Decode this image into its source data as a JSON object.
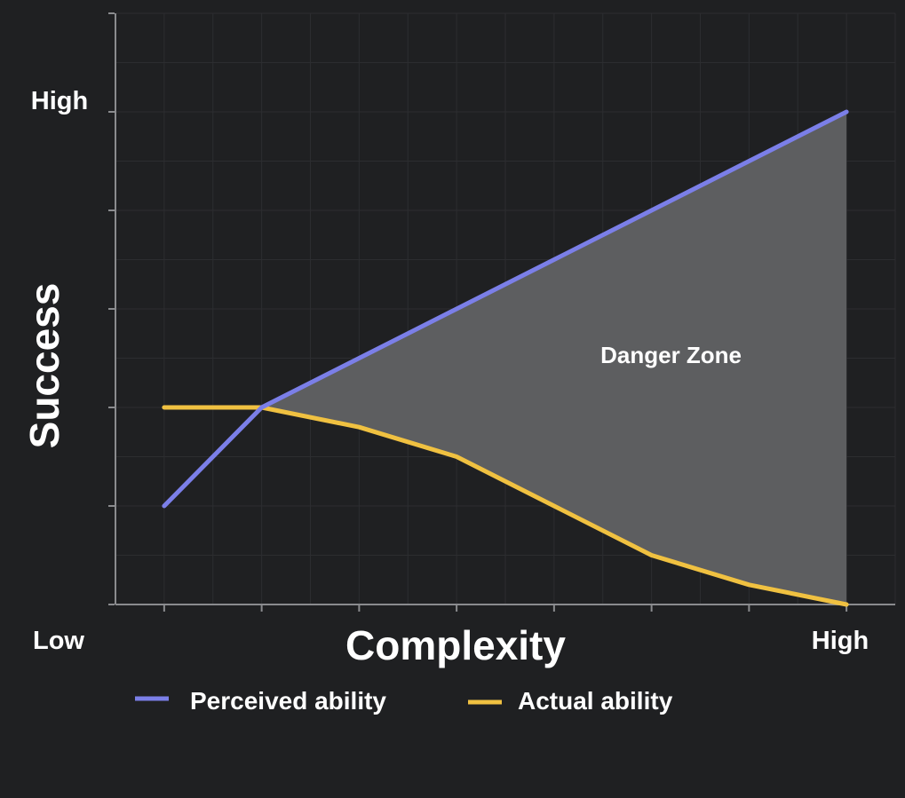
{
  "chart_data": {
    "type": "line",
    "title": "",
    "xlabel": "Complexity",
    "ylabel": "Success",
    "x_tick_labels": {
      "low": "Low",
      "high": "High"
    },
    "y_tick_labels": {
      "high": "High"
    },
    "x": [
      0,
      1,
      2,
      3,
      4,
      5,
      6,
      7
    ],
    "xlim": [
      -0.5,
      7.5
    ],
    "ylim": [
      0,
      6
    ],
    "grid": true,
    "legend_position": "bottom",
    "series": [
      {
        "name": "Perceived ability",
        "color": "#7b7fe8",
        "values": [
          1,
          2,
          2.5,
          3,
          3.5,
          4,
          4.5,
          5
        ]
      },
      {
        "name": "Actual ability",
        "color": "#f0c141",
        "values": [
          2,
          2,
          1.8,
          1.5,
          1,
          0.5,
          0.2,
          0
        ]
      }
    ],
    "annotations": [
      {
        "text": "Danger Zone",
        "x": 5.2,
        "y": 2.45,
        "fill_between": [
          "Perceived ability",
          "Actual ability"
        ],
        "fill_from_x": 1,
        "fill_color": "#5d5e60"
      }
    ],
    "colors": {
      "background": "#1f2022",
      "plot_background": "#1f2022",
      "axis": "#8a8b8e",
      "grid": "#2c2d30",
      "text": "#ffffff"
    }
  }
}
